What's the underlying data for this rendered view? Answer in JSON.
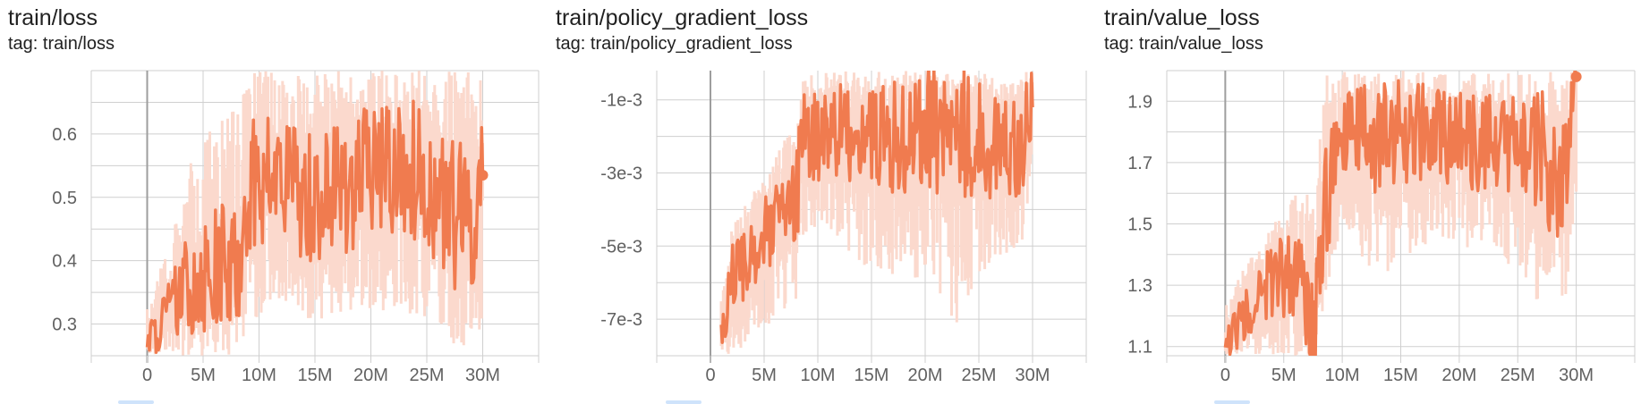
{
  "colors": {
    "line": "#f07b4f",
    "raw": "#fbd9cd",
    "grid": "#cfcfcf",
    "axis": "#9e9e9e",
    "text": "#616161"
  },
  "charts": [
    {
      "title": "train/loss",
      "tag": "tag: train/loss"
    },
    {
      "title": "train/policy_gradient_loss",
      "tag": "tag: train/policy_gradient_loss"
    },
    {
      "title": "train/value_loss",
      "tag": "tag: train/value_loss"
    }
  ],
  "chart_data": [
    {
      "type": "line",
      "title": "train/loss",
      "xlim": [
        -5000000,
        35000000
      ],
      "ylim": [
        0.25,
        0.7
      ],
      "xticks": [
        0,
        5000000,
        10000000,
        15000000,
        20000000,
        25000000,
        30000000
      ],
      "xtick_labels": [
        "0",
        "5M",
        "10M",
        "15M",
        "20M",
        "25M",
        "30M"
      ],
      "yticks": [
        0.3,
        0.4,
        0.5,
        0.6
      ],
      "ytick_labels": [
        "0.3",
        "0.4",
        "0.5",
        "0.6"
      ],
      "grid": true,
      "last_point": [
        30000000,
        0.535
      ],
      "series": [
        {
          "values": [
            [
              0,
              0.27
            ],
            [
              2000000,
              0.32
            ],
            [
              4000000,
              0.37
            ],
            [
              6000000,
              0.39
            ],
            [
              8000000,
              0.38
            ],
            [
              9000000,
              0.52
            ],
            [
              12000000,
              0.53
            ],
            [
              15000000,
              0.5
            ],
            [
              18000000,
              0.52
            ],
            [
              21000000,
              0.55
            ],
            [
              24000000,
              0.54
            ],
            [
              27000000,
              0.48
            ],
            [
              29000000,
              0.45
            ],
            [
              30000000,
              0.535
            ]
          ],
          "raw_range": [
            [
              0,
              0.25,
              0.33
            ],
            [
              2000000,
              0.25,
              0.45
            ],
            [
              4000000,
              0.25,
              0.56
            ],
            [
              6000000,
              0.25,
              0.62
            ],
            [
              8000000,
              0.25,
              0.65
            ],
            [
              9000000,
              0.3,
              0.7
            ],
            [
              12000000,
              0.34,
              0.7
            ],
            [
              15000000,
              0.3,
              0.7
            ],
            [
              18000000,
              0.32,
              0.7
            ],
            [
              21000000,
              0.32,
              0.7
            ],
            [
              24000000,
              0.3,
              0.7
            ],
            [
              27000000,
              0.27,
              0.7
            ],
            [
              29000000,
              0.25,
              0.7
            ],
            [
              30000000,
              0.3,
              0.7
            ]
          ]
        }
      ]
    },
    {
      "type": "line",
      "title": "train/policy_gradient_loss",
      "xlim": [
        -5000000,
        35000000
      ],
      "ylim": [
        -0.008,
        -0.0002
      ],
      "xticks": [
        0,
        5000000,
        10000000,
        15000000,
        20000000,
        25000000,
        30000000
      ],
      "xtick_labels": [
        "0",
        "5M",
        "10M",
        "15M",
        "20M",
        "25M",
        "30M"
      ],
      "yticks": [
        -0.007,
        -0.005,
        -0.003,
        -0.001
      ],
      "ytick_labels": [
        "-7e-3",
        "-5e-3",
        "-3e-3",
        "-1e-3"
      ],
      "grid": true,
      "series": [
        {
          "values": [
            [
              1000000,
              -0.0075
            ],
            [
              2000000,
              -0.0058
            ],
            [
              4000000,
              -0.0052
            ],
            [
              6000000,
              -0.0045
            ],
            [
              8000000,
              -0.0038
            ],
            [
              8500000,
              -0.0022
            ],
            [
              11000000,
              -0.0018
            ],
            [
              14000000,
              -0.0019
            ],
            [
              17000000,
              -0.0021
            ],
            [
              20000000,
              -0.0017
            ],
            [
              23000000,
              -0.0019
            ],
            [
              26000000,
              -0.0022
            ],
            [
              29000000,
              -0.0023
            ],
            [
              30000000,
              -0.0008
            ]
          ],
          "raw_range": [
            [
              1000000,
              -0.008,
              -0.0065
            ],
            [
              2000000,
              -0.008,
              -0.0045
            ],
            [
              4000000,
              -0.0075,
              -0.0035
            ],
            [
              6000000,
              -0.007,
              -0.0025
            ],
            [
              8000000,
              -0.0065,
              -0.0015
            ],
            [
              8500000,
              -0.005,
              -0.0002
            ],
            [
              11000000,
              -0.0045,
              -0.0002
            ],
            [
              14000000,
              -0.0055,
              -0.0002
            ],
            [
              17000000,
              -0.0058,
              -0.0002
            ],
            [
              20000000,
              -0.0062,
              -0.0002
            ],
            [
              23000000,
              -0.0072,
              -0.0002
            ],
            [
              26000000,
              -0.0055,
              -0.0002
            ],
            [
              29000000,
              -0.005,
              -0.0002
            ],
            [
              30000000,
              -0.004,
              -0.0002
            ]
          ]
        }
      ]
    },
    {
      "type": "line",
      "title": "train/value_loss",
      "xlim": [
        -5000000,
        35000000
      ],
      "ylim": [
        1.07,
        2.0
      ],
      "xticks": [
        0,
        5000000,
        10000000,
        15000000,
        20000000,
        25000000,
        30000000
      ],
      "xtick_labels": [
        "0",
        "5M",
        "10M",
        "15M",
        "20M",
        "25M",
        "30M"
      ],
      "yticks": [
        1.1,
        1.3,
        1.5,
        1.7,
        1.9
      ],
      "ytick_labels": [
        "1.1",
        "1.3",
        "1.5",
        "1.7",
        "1.9"
      ],
      "grid": true,
      "last_point": [
        30000000,
        1.98
      ],
      "series": [
        {
          "values": [
            [
              0,
              1.1
            ],
            [
              2000000,
              1.22
            ],
            [
              4000000,
              1.32
            ],
            [
              6000000,
              1.34
            ],
            [
              7500000,
              1.15
            ],
            [
              8500000,
              1.55
            ],
            [
              10000000,
              1.8
            ],
            [
              13000000,
              1.78
            ],
            [
              16000000,
              1.8
            ],
            [
              19000000,
              1.78
            ],
            [
              22000000,
              1.77
            ],
            [
              25000000,
              1.75
            ],
            [
              27000000,
              1.72
            ],
            [
              29000000,
              1.6
            ],
            [
              30000000,
              1.98
            ]
          ],
          "raw_range": [
            [
              0,
              1.07,
              1.25
            ],
            [
              2000000,
              1.07,
              1.38
            ],
            [
              4000000,
              1.07,
              1.5
            ],
            [
              6000000,
              1.07,
              1.6
            ],
            [
              7500000,
              1.07,
              1.68
            ],
            [
              8500000,
              1.25,
              2.0
            ],
            [
              10000000,
              1.5,
              2.0
            ],
            [
              13000000,
              1.3,
              2.0
            ],
            [
              16000000,
              1.4,
              2.0
            ],
            [
              19000000,
              1.45,
              2.0
            ],
            [
              22000000,
              1.38,
              2.0
            ],
            [
              25000000,
              1.36,
              2.0
            ],
            [
              27000000,
              1.22,
              2.0
            ],
            [
              29000000,
              1.2,
              2.0
            ],
            [
              30000000,
              1.6,
              2.0
            ]
          ]
        }
      ]
    }
  ]
}
